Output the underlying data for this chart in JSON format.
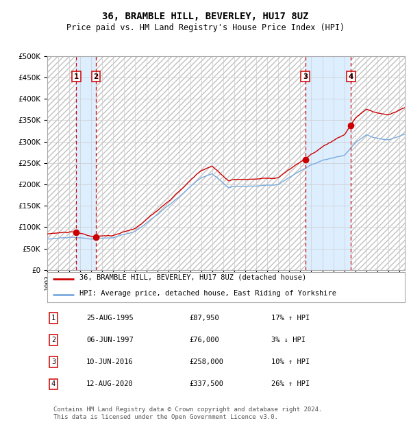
{
  "title": "36, BRAMBLE HILL, BEVERLEY, HU17 8UZ",
  "subtitle": "Price paid vs. HM Land Registry's House Price Index (HPI)",
  "background_color": "#ffffff",
  "grid_color": "#cccccc",
  "sale_dates": [
    1995.646,
    1997.431,
    2016.442,
    2020.612
  ],
  "sale_prices": [
    87950,
    76000,
    258000,
    337500
  ],
  "sale_labels": [
    "1",
    "2",
    "3",
    "4"
  ],
  "ylim": [
    0,
    500000
  ],
  "yticks": [
    0,
    50000,
    100000,
    150000,
    200000,
    250000,
    300000,
    350000,
    400000,
    450000,
    500000
  ],
  "xlim_start": 1993.0,
  "xlim_end": 2025.5,
  "legend_line1": "36, BRAMBLE HILL, BEVERLEY, HU17 8UZ (detached house)",
  "legend_line2": "HPI: Average price, detached house, East Riding of Yorkshire",
  "table_entries": [
    [
      "1",
      "25-AUG-1995",
      "£87,950",
      "17% ↑ HPI"
    ],
    [
      "2",
      "06-JUN-1997",
      "£76,000",
      "3% ↓ HPI"
    ],
    [
      "3",
      "10-JUN-2016",
      "£258,000",
      "10% ↑ HPI"
    ],
    [
      "4",
      "12-AUG-2020",
      "£337,500",
      "26% ↑ HPI"
    ]
  ],
  "footer": "Contains HM Land Registry data © Crown copyright and database right 2024.\nThis data is licensed under the Open Government Licence v3.0.",
  "red_line_color": "#cc0000",
  "blue_line_color": "#7aaadd",
  "dashed_line_color": "#cc0000",
  "marker_color": "#cc0000",
  "shade_color": "#ddeeff",
  "label_box_edge": "#cc0000"
}
